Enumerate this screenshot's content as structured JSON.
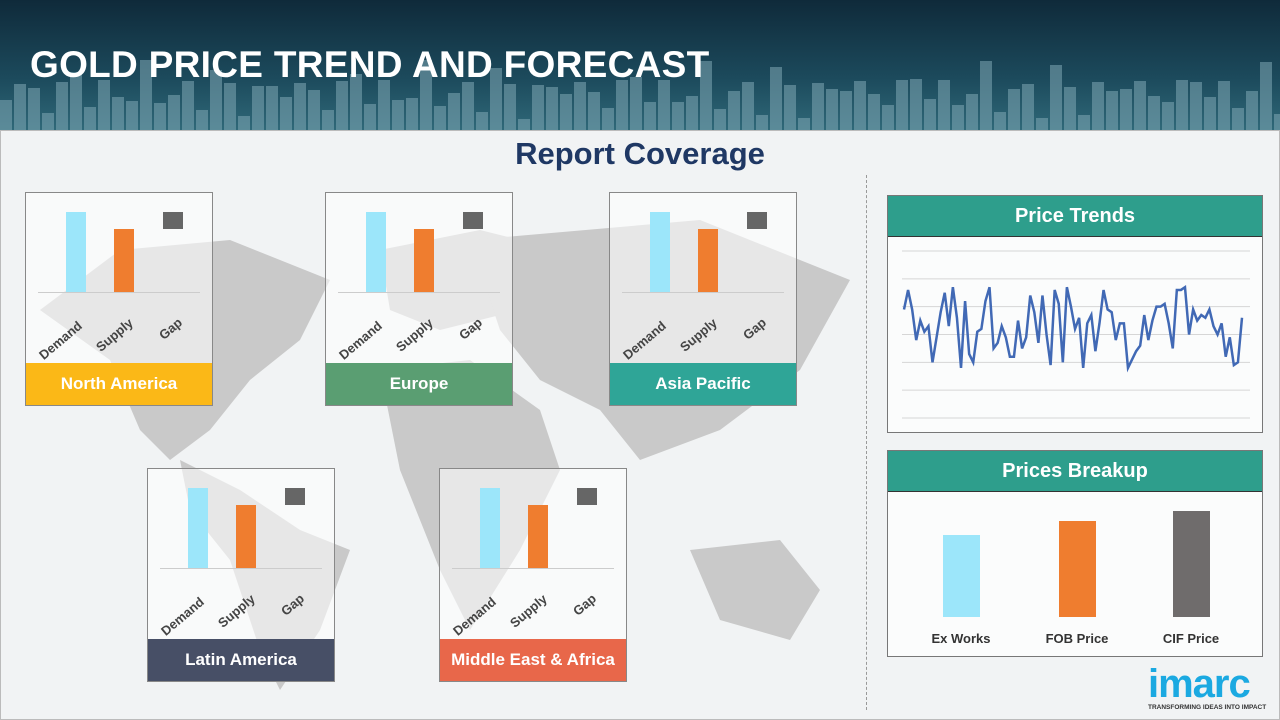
{
  "header": {
    "title": "GOLD PRICE TREND AND FORECAST"
  },
  "coverage_title": "Report Coverage",
  "bar_labels": {
    "demand": "Demand",
    "supply": "Supply",
    "gap": "Gap"
  },
  "regions": [
    {
      "name": "North America",
      "color": "#fbb817"
    },
    {
      "name": "Europe",
      "color": "#5a9e72"
    },
    {
      "name": "Asia Pacific",
      "color": "#2fa597"
    },
    {
      "name": "Latin America",
      "color": "#474f66"
    },
    {
      "name": "Middle East & Africa",
      "color": "#e8674a"
    }
  ],
  "colors": {
    "demand": "#9ce6fa",
    "supply": "#ef7d2f",
    "gap": "#666666",
    "teal": "#2e9e8c"
  },
  "price_trends": {
    "title": "Price Trends"
  },
  "prices_breakup": {
    "title": "Prices Breakup",
    "items": [
      {
        "label": "Ex Works",
        "value": 82,
        "color": "#9ce6fa"
      },
      {
        "label": "FOB Price",
        "value": 96,
        "color": "#ef7d2f"
      },
      {
        "label": "CIF Price",
        "value": 106,
        "color": "#6f6c6c"
      }
    ]
  },
  "chart_data": {
    "type": "line",
    "title": "Price Trends",
    "series": [
      {
        "values": [
          3.9,
          4.6,
          3.9,
          2.8,
          3.5,
          3.1,
          3.3,
          2.0,
          2.9,
          3.8,
          4.5,
          3.3,
          4.7,
          3.6,
          1.8,
          4.2,
          2.3,
          2.0,
          3.1,
          3.2,
          4.2,
          4.7,
          2.5,
          2.7,
          3.3,
          2.9,
          2.2,
          2.2,
          3.5,
          2.5,
          2.9,
          4.4,
          3.8,
          2.7,
          4.4,
          3.0,
          1.9,
          4.6,
          4.1,
          2.0,
          4.7,
          4.0,
          3.2,
          3.6,
          1.8,
          3.4,
          3.7,
          2.4,
          3.4,
          4.6,
          3.9,
          3.8,
          2.8,
          3.4,
          3.4,
          1.8,
          2.1,
          2.4,
          2.6,
          3.7,
          2.8,
          3.5,
          4.0,
          4.0,
          4.1,
          3.4,
          2.5,
          4.6,
          4.6,
          4.7,
          3.0,
          3.9,
          3.5,
          3.7,
          3.6,
          3.9,
          3.3,
          3.0,
          3.4,
          2.2,
          2.9,
          1.9,
          2.0,
          3.6
        ]
      }
    ],
    "ylim": [
      0,
      6
    ],
    "grid": true
  }
}
